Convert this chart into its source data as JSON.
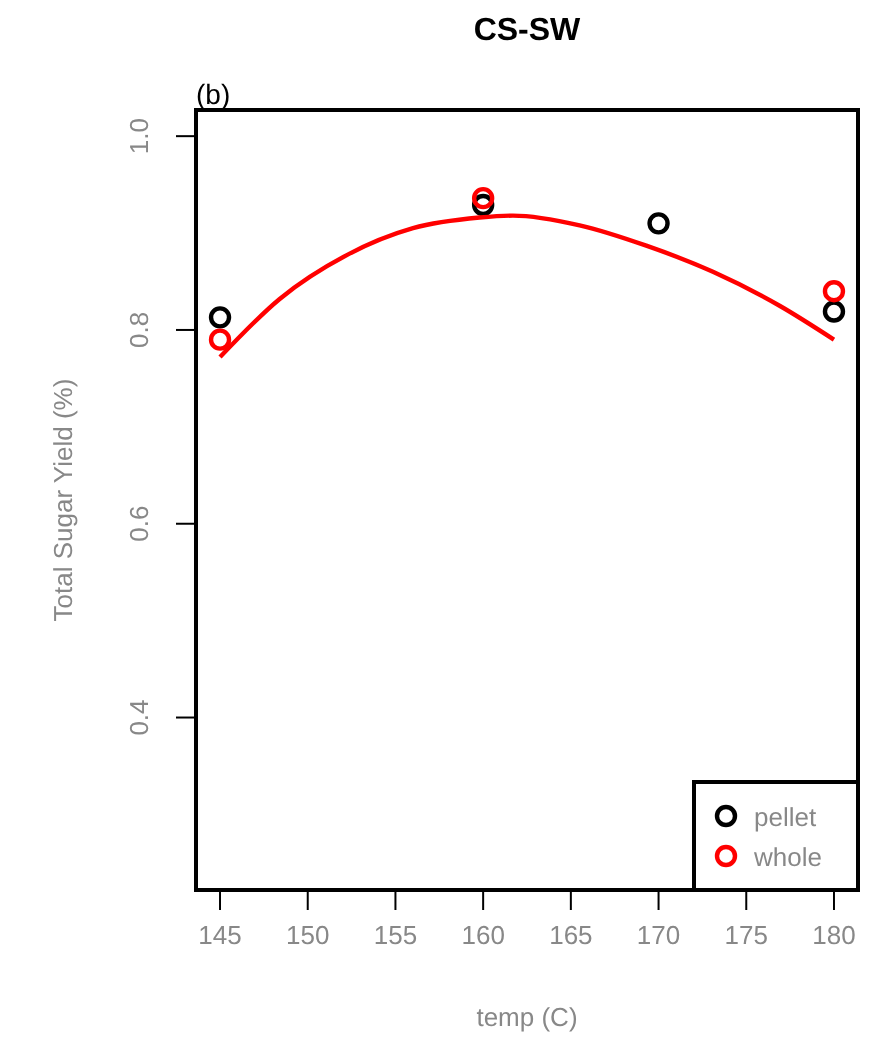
{
  "chart_data": {
    "type": "scatter",
    "title": "CS-SW",
    "xlabel": "temp (C)",
    "ylabel": "Total Sugar Yield (%)",
    "annotations": [
      "(b)"
    ],
    "xlim": [
      143.63,
      181.37
    ],
    "xticks": [
      145,
      150,
      155,
      160,
      165,
      170,
      175,
      180
    ],
    "ylim": [
      0.222,
      1.027
    ],
    "yticks": [
      {
        "value": 0.4,
        "label": "0.4"
      },
      {
        "value": 0.6,
        "label": "0.6"
      },
      {
        "value": 0.8,
        "label": "0.8"
      },
      {
        "value": 1.0,
        "label": "1.0"
      }
    ],
    "grid": false,
    "legend": "bottom right",
    "marker": "circle",
    "series": [
      {
        "name": "pellet",
        "color": "#000000",
        "x": [
          145,
          160,
          170,
          180
        ],
        "values": [
          0.813,
          0.929,
          0.91,
          0.819
        ]
      },
      {
        "name": "whole",
        "color": "#ff0000",
        "x": [
          145,
          160,
          180
        ],
        "values": [
          0.79,
          0.936,
          0.84
        ]
      },
      {
        "type": "line",
        "color": "#ff0000",
        "line_style": "solid",
        "marker": "none",
        "x": [
          145,
          148.4,
          152.2,
          156,
          159.8,
          161.7,
          165.5,
          169.3,
          173.1,
          176.9,
          180
        ],
        "values": [
          0.772,
          0.832,
          0.877,
          0.905,
          0.916,
          0.918,
          0.908,
          0.887,
          0.86,
          0.825,
          0.79
        ]
      }
    ]
  }
}
